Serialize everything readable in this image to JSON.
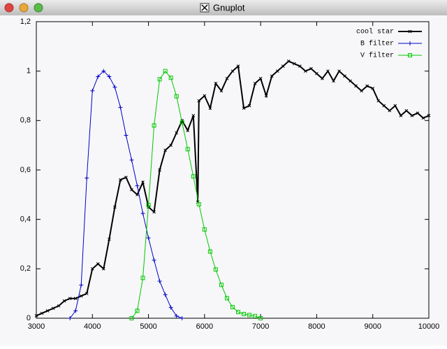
{
  "window": {
    "title": "Gnuplot"
  },
  "chart_data": {
    "type": "line",
    "xlim": [
      3000,
      10000
    ],
    "xticks": [
      3000,
      4000,
      5000,
      6000,
      7000,
      8000,
      9000,
      10000
    ],
    "ylim": [
      0,
      1.2
    ],
    "yticks": [
      0,
      {
        "value": 0.2,
        "label": "0,2"
      },
      {
        "value": 0.4,
        "label": "0,4"
      },
      {
        "value": 0.6,
        "label": "0,6"
      },
      {
        "value": 0.8,
        "label": "0,8"
      },
      1,
      {
        "value": 1.2,
        "label": "1,2"
      }
    ],
    "grid": false,
    "legend": "top-right",
    "series": [
      {
        "name": "cool star",
        "color": "#000000",
        "marker": "cross",
        "x": [
          3000,
          3100,
          3200,
          3300,
          3400,
          3500,
          3600,
          3700,
          3800,
          3900,
          4000,
          4100,
          4200,
          4300,
          4400,
          4500,
          4600,
          4700,
          4800,
          4900,
          5000,
          5100,
          5200,
          5300,
          5400,
          5500,
          5600,
          5700,
          5800,
          5880,
          5900,
          6000,
          6100,
          6200,
          6300,
          6400,
          6500,
          6600,
          6700,
          6800,
          6900,
          7000,
          7100,
          7200,
          7300,
          7400,
          7500,
          7600,
          7700,
          7800,
          7900,
          8000,
          8100,
          8200,
          8300,
          8400,
          8500,
          8600,
          8700,
          8800,
          8900,
          9000,
          9100,
          9200,
          9300,
          9400,
          9500,
          9600,
          9700,
          9800,
          9900,
          10000
        ],
        "values": [
          0.01,
          0.02,
          0.03,
          0.04,
          0.05,
          0.07,
          0.08,
          0.08,
          0.09,
          0.1,
          0.2,
          0.22,
          0.2,
          0.32,
          0.45,
          0.56,
          0.57,
          0.52,
          0.5,
          0.55,
          0.45,
          0.43,
          0.6,
          0.68,
          0.7,
          0.75,
          0.8,
          0.76,
          0.82,
          0.47,
          0.88,
          0.9,
          0.85,
          0.95,
          0.92,
          0.97,
          1.0,
          1.02,
          0.85,
          0.86,
          0.95,
          0.97,
          0.9,
          0.98,
          1.0,
          1.02,
          1.04,
          1.03,
          1.02,
          1.0,
          1.01,
          0.99,
          0.97,
          1.0,
          0.96,
          1.0,
          0.98,
          0.96,
          0.94,
          0.92,
          0.94,
          0.93,
          0.88,
          0.86,
          0.84,
          0.86,
          0.82,
          0.84,
          0.82,
          0.83,
          0.81,
          0.82
        ]
      },
      {
        "name": "B filter",
        "color": "#0000c8",
        "marker": "plus",
        "x": [
          3600,
          3700,
          3800,
          3900,
          4000,
          4100,
          4200,
          4300,
          4400,
          4500,
          4600,
          4700,
          4800,
          4900,
          5000,
          5100,
          5200,
          5300,
          5400,
          5500,
          5600
        ],
        "values": [
          0,
          0.03,
          0.134,
          0.567,
          0.92,
          0.978,
          1.0,
          0.978,
          0.935,
          0.853,
          0.74,
          0.64,
          0.536,
          0.424,
          0.325,
          0.235,
          0.15,
          0.095,
          0.043,
          0.009,
          0
        ]
      },
      {
        "name": "V filter",
        "color": "#00c800",
        "marker": "square",
        "x": [
          4700,
          4800,
          4900,
          5000,
          5100,
          5200,
          5300,
          5400,
          5500,
          5600,
          5700,
          5800,
          5900,
          6000,
          6100,
          6200,
          6300,
          6400,
          6500,
          6600,
          6700,
          6800,
          6900,
          7000
        ],
        "values": [
          0,
          0.03,
          0.163,
          0.458,
          0.78,
          0.967,
          1.0,
          0.973,
          0.898,
          0.792,
          0.684,
          0.574,
          0.461,
          0.359,
          0.27,
          0.197,
          0.135,
          0.081,
          0.045,
          0.025,
          0.017,
          0.013,
          0.009,
          0
        ]
      }
    ]
  }
}
